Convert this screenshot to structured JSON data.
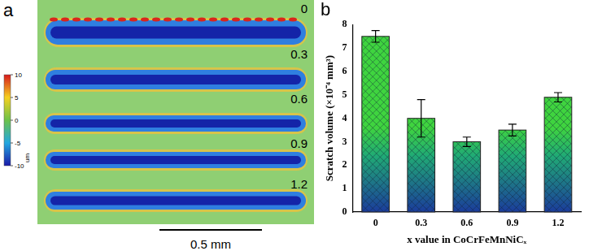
{
  "panel_a": {
    "label": "a",
    "scratch_labels": [
      "0",
      "0.3",
      "0.6",
      "0.9",
      "1.2"
    ],
    "colorbar": {
      "range": [
        -10,
        10
      ],
      "ticks": [
        10,
        5,
        0,
        -5,
        -10
      ],
      "unit": "um"
    },
    "scale_bar": "0.5 mm"
  },
  "chart_data": {
    "type": "bar",
    "title": "b",
    "x_label": "x value in CoCrFeMnNiCₓ",
    "y_label": "Scratch volume (×10⁻⁴ mm³)",
    "categories": [
      "0",
      "0.3",
      "0.6",
      "0.9",
      "1.2"
    ],
    "values": [
      7.5,
      4.0,
      3.0,
      3.5,
      4.9
    ],
    "errors": [
      0.25,
      0.8,
      0.2,
      0.25,
      0.2
    ],
    "color": "#3fd43f",
    "ylim": [
      0,
      8
    ],
    "yticks": [
      0,
      1,
      2,
      3,
      4,
      5,
      6,
      7,
      8
    ],
    "grid": false
  }
}
